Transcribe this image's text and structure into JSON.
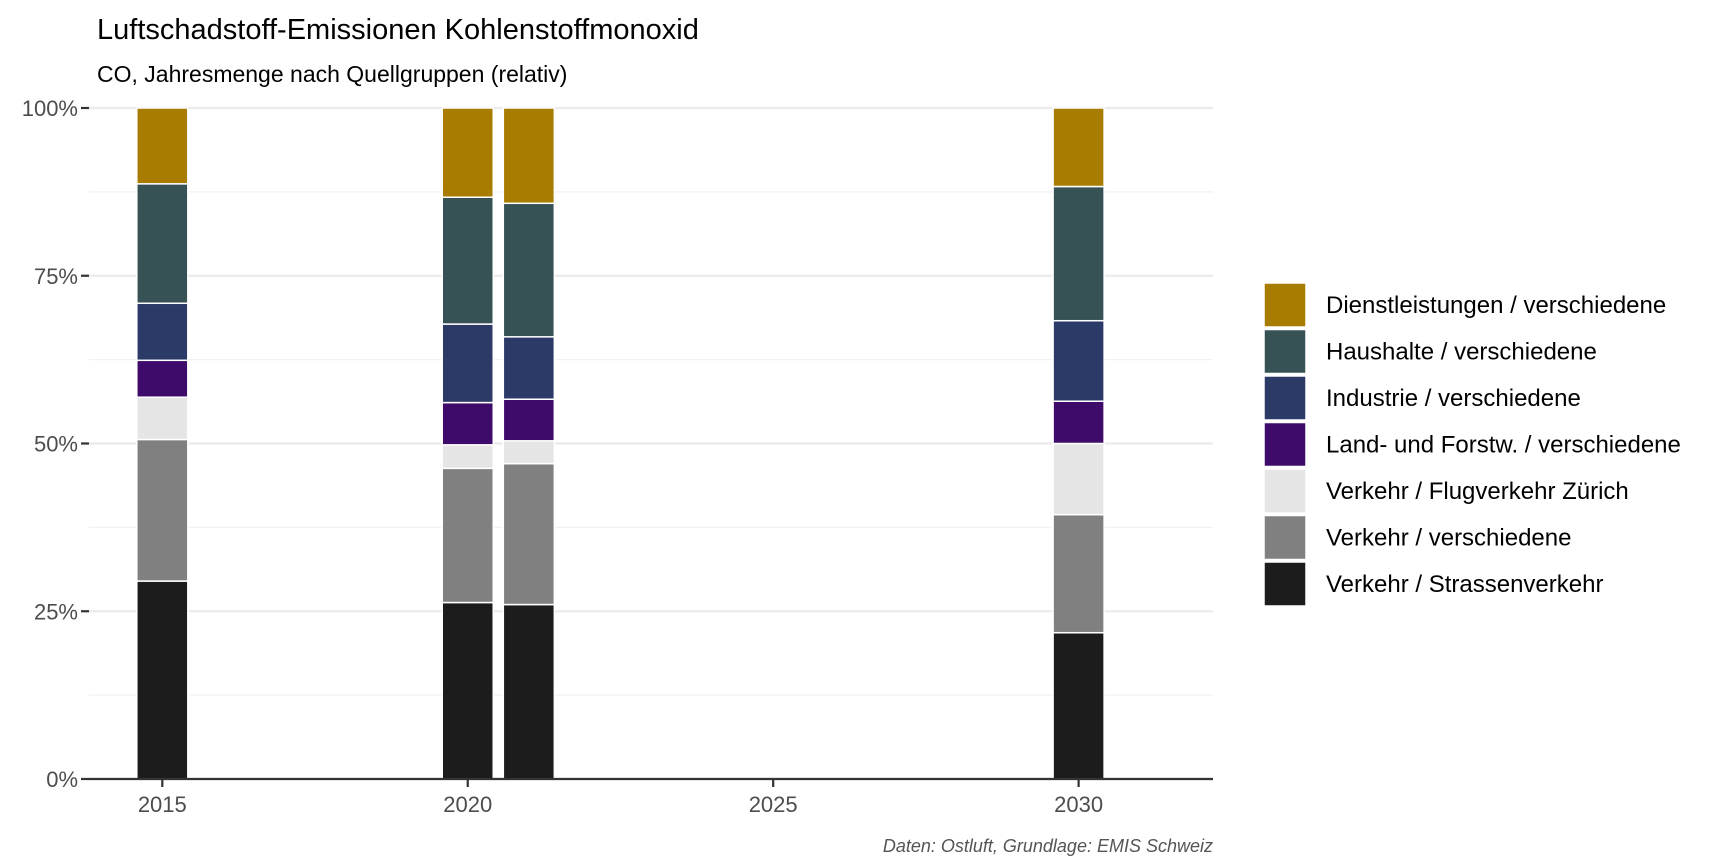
{
  "chart_data": {
    "type": "bar",
    "stacked": true,
    "relative": true,
    "title": "Luftschadstoff-Emissionen Kohlenstoffmonoxid",
    "subtitle": "CO, Jahresmenge nach Quellgruppen (relativ)",
    "caption": "Daten: Ostluft, Grundlage: EMIS Schweiz",
    "xlabel": "",
    "ylabel": "",
    "xlim": [
      2013.8,
      2032.2
    ],
    "x_ticks": [
      2015,
      2020,
      2025,
      2030
    ],
    "x_tick_labels": [
      "2015",
      "2020",
      "2025",
      "2030"
    ],
    "ylim": [
      0,
      1
    ],
    "y_ticks": [
      0,
      0.25,
      0.5,
      0.75,
      1
    ],
    "y_tick_labels": [
      "0%",
      "25%",
      "50%",
      "75%",
      "100%"
    ],
    "grid": true,
    "legend_position": "right",
    "x": [
      2015,
      2020,
      2021,
      2030
    ],
    "series": [
      {
        "name": "Verkehr / Strassenverkehr",
        "color": "#1c1c1c",
        "values": [
          0.295,
          0.263,
          0.26,
          0.218
        ]
      },
      {
        "name": "Verkehr / verschiedene",
        "color": "#808080",
        "values": [
          0.211,
          0.2,
          0.21,
          0.176
        ]
      },
      {
        "name": "Verkehr / Flugverkehr Zürich",
        "color": "#e5e5e5",
        "values": [
          0.063,
          0.035,
          0.034,
          0.106
        ]
      },
      {
        "name": "Land- und Forstw. / verschiedene",
        "color": "#3e0b6b",
        "values": [
          0.055,
          0.063,
          0.062,
          0.063
        ]
      },
      {
        "name": "Industrie / verschiedene",
        "color": "#2b3a67",
        "values": [
          0.085,
          0.117,
          0.093,
          0.12
        ]
      },
      {
        "name": "Haushalte / verschiedene",
        "color": "#365254",
        "values": [
          0.178,
          0.189,
          0.199,
          0.2
        ]
      },
      {
        "name": "Dienstleistungen / verschiedene",
        "color": "#a87c00",
        "values": [
          0.113,
          0.133,
          0.142,
          0.117
        ]
      }
    ]
  }
}
